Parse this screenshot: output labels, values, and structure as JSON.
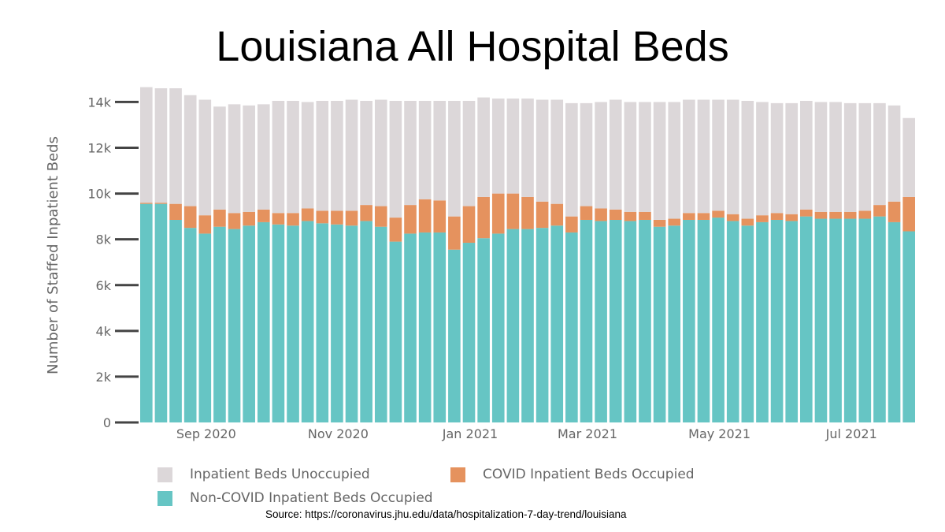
{
  "title": "Louisiana All Hospital Beds",
  "source": "Source: https://coronavirus.jhu.edu/data/hospitalization-7-day-trend/louisiana",
  "chart_data": {
    "type": "bar",
    "stacked": true,
    "ylabel": "Number of Staffed Inpatient Beds",
    "ylim": [
      0,
      14600
    ],
    "yticks": [
      0,
      2000,
      4000,
      6000,
      8000,
      10000,
      12000,
      14000
    ],
    "ytick_labels": [
      "0",
      "2k",
      "4k",
      "6k",
      "8k",
      "10k",
      "12k",
      "14k"
    ],
    "xtick_labels": [
      {
        "label": "Sep 2020",
        "index": 4.5
      },
      {
        "label": "Nov 2020",
        "index": 13.5
      },
      {
        "label": "Jan 2021",
        "index": 22.5
      },
      {
        "label": "Mar 2021",
        "index": 30.5
      },
      {
        "label": "May 2021",
        "index": 39.5
      },
      {
        "label": "Jul 2021",
        "index": 48.5
      }
    ],
    "series": [
      {
        "name": "Non-COVID Inpatient Beds Occupied",
        "color": "#66c5c4",
        "values": [
          9550,
          9550,
          8850,
          8500,
          8250,
          8550,
          8450,
          8600,
          8750,
          8650,
          8600,
          8800,
          8700,
          8650,
          8600,
          8800,
          8550,
          7900,
          8250,
          8300,
          8300,
          7550,
          7850,
          8050,
          8250,
          8450,
          8450,
          8500,
          8600,
          8300,
          8850,
          8800,
          8850,
          8800,
          8850,
          8550,
          8600,
          8850,
          8850,
          8950,
          8800,
          8600,
          8750,
          8850,
          8800,
          9000,
          8900,
          8900,
          8900,
          8900,
          9000,
          8750,
          8350
        ]
      },
      {
        "name": "COVID Inpatient Beds Occupied",
        "color": "#e5925e",
        "values": [
          50,
          50,
          700,
          950,
          800,
          750,
          700,
          600,
          550,
          500,
          550,
          550,
          550,
          600,
          650,
          700,
          900,
          1050,
          1250,
          1450,
          1400,
          1450,
          1600,
          1800,
          1750,
          1550,
          1400,
          1150,
          950,
          700,
          600,
          550,
          450,
          400,
          350,
          300,
          300,
          300,
          300,
          300,
          300,
          300,
          300,
          300,
          300,
          300,
          300,
          300,
          300,
          350,
          500,
          900,
          1500
        ]
      },
      {
        "name": "Inpatient Beds Unoccupied",
        "color": "#dcd7d9",
        "values": [
          5050,
          5000,
          5050,
          4850,
          5050,
          4500,
          4750,
          4650,
          4600,
          4900,
          4900,
          4650,
          4800,
          4800,
          4850,
          4550,
          4650,
          5100,
          4550,
          4300,
          4350,
          5050,
          4600,
          4350,
          4150,
          4150,
          4300,
          4450,
          4550,
          4950,
          4500,
          4650,
          4800,
          4800,
          4800,
          5150,
          5100,
          4950,
          4950,
          4850,
          5000,
          5150,
          4950,
          4800,
          4850,
          4750,
          4800,
          4800,
          4750,
          4700,
          4450,
          4200,
          3450
        ]
      }
    ]
  },
  "legend": [
    {
      "label": "Inpatient Beds Unoccupied",
      "color": "#dcd7d9"
    },
    {
      "label": "COVID Inpatient Beds Occupied",
      "color": "#e5925e"
    },
    {
      "label": "Non-COVID Inpatient Beds Occupied",
      "color": "#66c5c4"
    }
  ]
}
